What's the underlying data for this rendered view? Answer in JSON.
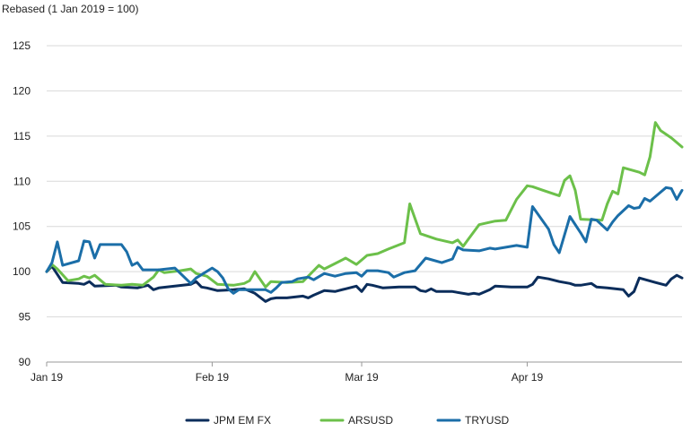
{
  "chart_data": {
    "type": "line",
    "title": "",
    "ylabel": "Rebased (1 Jan 2019 = 100)",
    "xlabel": "",
    "ylim": [
      90,
      125
    ],
    "yticks": [
      90,
      95,
      100,
      105,
      110,
      115,
      120,
      125
    ],
    "x_range": [
      "2019-01-01",
      "2019-04-30"
    ],
    "xticks": [
      {
        "date": "2019-01-01",
        "label": "Jan 19"
      },
      {
        "date": "2019-02-01",
        "label": "Feb 19"
      },
      {
        "date": "2019-03-01",
        "label": "Mar 19"
      },
      {
        "date": "2019-04-01",
        "label": "Apr 19"
      }
    ],
    "grid": "horizontal",
    "legend_position": "bottom",
    "series": [
      {
        "name": "JPM EM FX",
        "color": "#0b2d5b",
        "points": [
          [
            "2019-01-01",
            100.0
          ],
          [
            "2019-01-02",
            100.6
          ],
          [
            "2019-01-04",
            98.8
          ],
          [
            "2019-01-07",
            98.7
          ],
          [
            "2019-01-08",
            98.6
          ],
          [
            "2019-01-09",
            98.9
          ],
          [
            "2019-01-10",
            98.4
          ],
          [
            "2019-01-14",
            98.5
          ],
          [
            "2019-01-15",
            98.3
          ],
          [
            "2019-01-18",
            98.2
          ],
          [
            "2019-01-20",
            98.5
          ],
          [
            "2019-01-21",
            98.0
          ],
          [
            "2019-01-22",
            98.2
          ],
          [
            "2019-01-25",
            98.4
          ],
          [
            "2019-01-28",
            98.6
          ],
          [
            "2019-01-29",
            98.9
          ],
          [
            "2019-01-30",
            98.3
          ],
          [
            "2019-01-31",
            98.2
          ],
          [
            "2019-02-02",
            97.9
          ],
          [
            "2019-02-05",
            98.0
          ],
          [
            "2019-02-07",
            98.1
          ],
          [
            "2019-02-09",
            97.6
          ],
          [
            "2019-02-11",
            96.7
          ],
          [
            "2019-02-12",
            97.0
          ],
          [
            "2019-02-13",
            97.1
          ],
          [
            "2019-02-15",
            97.1
          ],
          [
            "2019-02-18",
            97.3
          ],
          [
            "2019-02-19",
            97.1
          ],
          [
            "2019-02-20",
            97.4
          ],
          [
            "2019-02-22",
            97.9
          ],
          [
            "2019-02-24",
            97.8
          ],
          [
            "2019-02-26",
            98.1
          ],
          [
            "2019-02-28",
            98.4
          ],
          [
            "2019-03-01",
            97.8
          ],
          [
            "2019-03-02",
            98.6
          ],
          [
            "2019-03-03",
            98.5
          ],
          [
            "2019-03-05",
            98.2
          ],
          [
            "2019-03-08",
            98.3
          ],
          [
            "2019-03-11",
            98.3
          ],
          [
            "2019-03-12",
            97.9
          ],
          [
            "2019-03-13",
            97.8
          ],
          [
            "2019-03-14",
            98.1
          ],
          [
            "2019-03-15",
            97.8
          ],
          [
            "2019-03-18",
            97.8
          ],
          [
            "2019-03-21",
            97.5
          ],
          [
            "2019-03-22",
            97.6
          ],
          [
            "2019-03-23",
            97.5
          ],
          [
            "2019-03-25",
            98.0
          ],
          [
            "2019-03-26",
            98.4
          ],
          [
            "2019-03-29",
            98.3
          ],
          [
            "2019-04-01",
            98.3
          ],
          [
            "2019-04-02",
            98.6
          ],
          [
            "2019-04-03",
            99.4
          ],
          [
            "2019-04-05",
            99.2
          ],
          [
            "2019-04-07",
            98.9
          ],
          [
            "2019-04-09",
            98.7
          ],
          [
            "2019-04-10",
            98.5
          ],
          [
            "2019-04-11",
            98.5
          ],
          [
            "2019-04-13",
            98.7
          ],
          [
            "2019-04-14",
            98.3
          ],
          [
            "2019-04-16",
            98.2
          ],
          [
            "2019-04-19",
            98.0
          ],
          [
            "2019-04-20",
            97.3
          ],
          [
            "2019-04-21",
            97.8
          ],
          [
            "2019-04-22",
            99.3
          ],
          [
            "2019-04-25",
            98.8
          ],
          [
            "2019-04-27",
            98.5
          ],
          [
            "2019-04-28",
            99.2
          ],
          [
            "2019-04-29",
            99.6
          ],
          [
            "2019-04-30",
            99.3
          ]
        ]
      },
      {
        "name": "ARSUSD",
        "color": "#6cc04a",
        "points": [
          [
            "2019-01-01",
            100.0
          ],
          [
            "2019-01-02",
            100.8
          ],
          [
            "2019-01-03",
            100.3
          ],
          [
            "2019-01-05",
            99.0
          ],
          [
            "2019-01-07",
            99.2
          ],
          [
            "2019-01-08",
            99.5
          ],
          [
            "2019-01-09",
            99.3
          ],
          [
            "2019-01-10",
            99.6
          ],
          [
            "2019-01-12",
            98.6
          ],
          [
            "2019-01-15",
            98.5
          ],
          [
            "2019-01-17",
            98.6
          ],
          [
            "2019-01-19",
            98.5
          ],
          [
            "2019-01-21",
            99.4
          ],
          [
            "2019-01-22",
            100.2
          ],
          [
            "2019-01-23",
            99.9
          ],
          [
            "2019-01-26",
            100.1
          ],
          [
            "2019-01-28",
            100.3
          ],
          [
            "2019-01-29",
            99.8
          ],
          [
            "2019-01-31",
            99.5
          ],
          [
            "2019-02-02",
            98.6
          ],
          [
            "2019-02-05",
            98.5
          ],
          [
            "2019-02-07",
            98.7
          ],
          [
            "2019-02-08",
            99.0
          ],
          [
            "2019-02-09",
            100.0
          ],
          [
            "2019-02-11",
            98.3
          ],
          [
            "2019-02-12",
            98.9
          ],
          [
            "2019-02-15",
            98.8
          ],
          [
            "2019-02-18",
            98.9
          ],
          [
            "2019-02-19",
            99.5
          ],
          [
            "2019-02-21",
            100.7
          ],
          [
            "2019-02-22",
            100.3
          ],
          [
            "2019-02-24",
            100.9
          ],
          [
            "2019-02-26",
            101.5
          ],
          [
            "2019-02-28",
            100.8
          ],
          [
            "2019-03-02",
            101.8
          ],
          [
            "2019-03-04",
            102.0
          ],
          [
            "2019-03-06",
            102.5
          ],
          [
            "2019-03-09",
            103.2
          ],
          [
            "2019-03-10",
            107.5
          ],
          [
            "2019-03-12",
            104.2
          ],
          [
            "2019-03-15",
            103.6
          ],
          [
            "2019-03-18",
            103.2
          ],
          [
            "2019-03-19",
            103.5
          ],
          [
            "2019-03-20",
            102.8
          ],
          [
            "2019-03-21",
            103.6
          ],
          [
            "2019-03-23",
            105.2
          ],
          [
            "2019-03-26",
            105.6
          ],
          [
            "2019-03-28",
            105.7
          ],
          [
            "2019-03-30",
            108.0
          ],
          [
            "2019-04-01",
            109.5
          ],
          [
            "2019-04-02",
            109.4
          ],
          [
            "2019-04-04",
            109.0
          ],
          [
            "2019-04-07",
            108.4
          ],
          [
            "2019-04-08",
            110.1
          ],
          [
            "2019-04-09",
            110.6
          ],
          [
            "2019-04-10",
            109.0
          ],
          [
            "2019-04-11",
            105.8
          ],
          [
            "2019-04-15",
            105.7
          ],
          [
            "2019-04-16",
            107.5
          ],
          [
            "2019-04-17",
            108.9
          ],
          [
            "2019-04-18",
            108.6
          ],
          [
            "2019-04-19",
            111.5
          ],
          [
            "2019-04-22",
            111.0
          ],
          [
            "2019-04-23",
            110.7
          ],
          [
            "2019-04-24",
            112.7
          ],
          [
            "2019-04-25",
            116.5
          ],
          [
            "2019-04-26",
            115.6
          ],
          [
            "2019-04-28",
            114.8
          ],
          [
            "2019-04-30",
            113.8
          ]
        ]
      },
      {
        "name": "TRYUSD",
        "color": "#1b6ea8",
        "points": [
          [
            "2019-01-01",
            100.0
          ],
          [
            "2019-01-02",
            101.0
          ],
          [
            "2019-01-03",
            103.3
          ],
          [
            "2019-01-04",
            100.7
          ],
          [
            "2019-01-07",
            101.2
          ],
          [
            "2019-01-08",
            103.4
          ],
          [
            "2019-01-09",
            103.3
          ],
          [
            "2019-01-10",
            101.5
          ],
          [
            "2019-01-11",
            103.0
          ],
          [
            "2019-01-15",
            103.0
          ],
          [
            "2019-01-16",
            102.2
          ],
          [
            "2019-01-17",
            100.7
          ],
          [
            "2019-01-18",
            101.0
          ],
          [
            "2019-01-19",
            100.2
          ],
          [
            "2019-01-22",
            100.2
          ],
          [
            "2019-01-25",
            100.4
          ],
          [
            "2019-01-28",
            98.7
          ],
          [
            "2019-01-29",
            99.3
          ],
          [
            "2019-02-01",
            100.4
          ],
          [
            "2019-02-02",
            100.0
          ],
          [
            "2019-02-03",
            99.3
          ],
          [
            "2019-02-04",
            98.1
          ],
          [
            "2019-02-05",
            97.6
          ],
          [
            "2019-02-06",
            98.0
          ],
          [
            "2019-02-07",
            98.0
          ],
          [
            "2019-02-09",
            98.0
          ],
          [
            "2019-02-11",
            98.0
          ],
          [
            "2019-02-12",
            97.7
          ],
          [
            "2019-02-13",
            98.2
          ],
          [
            "2019-02-14",
            98.8
          ],
          [
            "2019-02-16",
            98.9
          ],
          [
            "2019-02-17",
            99.2
          ],
          [
            "2019-02-19",
            99.4
          ],
          [
            "2019-02-20",
            99.1
          ],
          [
            "2019-02-22",
            99.8
          ],
          [
            "2019-02-24",
            99.5
          ],
          [
            "2019-02-26",
            99.8
          ],
          [
            "2019-02-28",
            99.9
          ],
          [
            "2019-03-01",
            99.5
          ],
          [
            "2019-03-02",
            100.1
          ],
          [
            "2019-03-04",
            100.1
          ],
          [
            "2019-03-06",
            99.9
          ],
          [
            "2019-03-07",
            99.4
          ],
          [
            "2019-03-09",
            99.9
          ],
          [
            "2019-03-11",
            100.1
          ],
          [
            "2019-03-13",
            101.5
          ],
          [
            "2019-03-16",
            101.0
          ],
          [
            "2019-03-18",
            101.4
          ],
          [
            "2019-03-19",
            102.7
          ],
          [
            "2019-03-20",
            102.4
          ],
          [
            "2019-03-23",
            102.3
          ],
          [
            "2019-03-25",
            102.6
          ],
          [
            "2019-03-26",
            102.5
          ],
          [
            "2019-03-28",
            102.7
          ],
          [
            "2019-03-30",
            102.9
          ],
          [
            "2019-04-01",
            102.7
          ],
          [
            "2019-04-02",
            107.2
          ],
          [
            "2019-04-05",
            104.7
          ],
          [
            "2019-04-06",
            103.0
          ],
          [
            "2019-04-07",
            102.1
          ],
          [
            "2019-04-09",
            106.1
          ],
          [
            "2019-04-11",
            104.3
          ],
          [
            "2019-04-12",
            103.3
          ],
          [
            "2019-04-13",
            105.8
          ],
          [
            "2019-04-14",
            105.7
          ],
          [
            "2019-04-16",
            104.6
          ],
          [
            "2019-04-17",
            105.5
          ],
          [
            "2019-04-18",
            106.2
          ],
          [
            "2019-04-20",
            107.3
          ],
          [
            "2019-04-21",
            107.0
          ],
          [
            "2019-04-22",
            107.1
          ],
          [
            "2019-04-23",
            108.1
          ],
          [
            "2019-04-24",
            107.8
          ],
          [
            "2019-04-26",
            108.8
          ],
          [
            "2019-04-27",
            109.3
          ],
          [
            "2019-04-28",
            109.2
          ],
          [
            "2019-04-29",
            108.0
          ],
          [
            "2019-04-30",
            109.0
          ]
        ]
      }
    ]
  }
}
